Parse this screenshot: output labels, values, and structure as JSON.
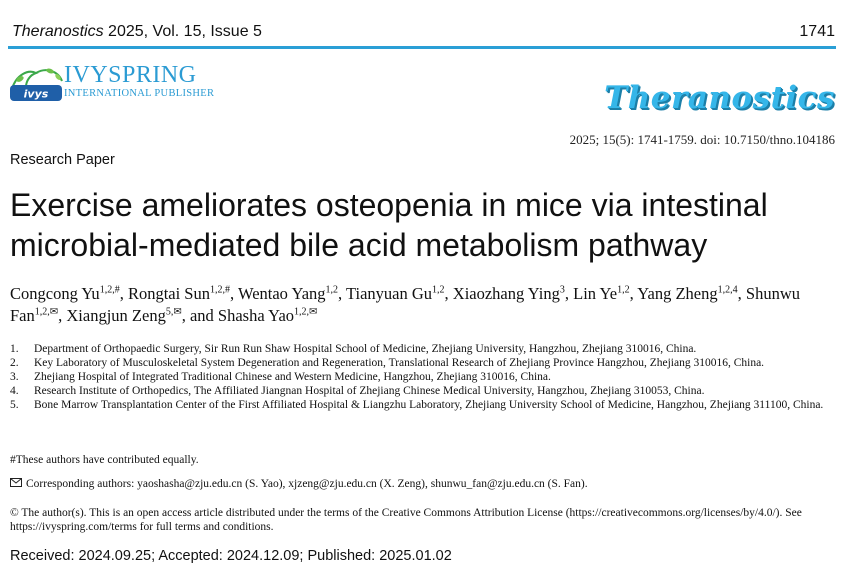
{
  "header": {
    "journal_name": "Theranostics",
    "journal_rest": "2025, Vol. 15, Issue 5",
    "page_number": "1741"
  },
  "publisher": {
    "logo_badge": "IVYSPRING",
    "name": "IVYSPRING",
    "subtitle": "INTERNATIONAL PUBLISHER"
  },
  "brand": {
    "journal_logo_text": "Theranostics"
  },
  "citation": "2025; 15(5): 1741-1759. doi: 10.7150/thno.104186",
  "paper_type": "Research Paper",
  "title": "Exercise ameliorates osteopenia in mice via intestinal microbial-mediated bile acid metabolism pathway",
  "authors": [
    {
      "name": "Congcong Yu",
      "sup": "1,2,#",
      "sep": ", "
    },
    {
      "name": "Rongtai Sun",
      "sup": "1,2,#",
      "sep": ", "
    },
    {
      "name": "Wentao Yang",
      "sup": "1,2",
      "sep": ", "
    },
    {
      "name": "Tianyuan Gu",
      "sup": "1,2",
      "sep": ", "
    },
    {
      "name": "Xiaozhang Ying",
      "sup": "3",
      "sep": ", "
    },
    {
      "name": "Lin Ye",
      "sup": "1,2",
      "sep": ", "
    },
    {
      "name": "Yang Zheng",
      "sup": "1,2,4",
      "sep": ", "
    },
    {
      "name": "Shunwu Fan",
      "sup": "1,2,✉",
      "sep": ", "
    },
    {
      "name": "Xiangjun Zeng",
      "sup": "5,✉",
      "sep": ", and "
    },
    {
      "name": "Shasha Yao",
      "sup": "1,2,✉",
      "sep": ""
    }
  ],
  "affiliations": [
    {
      "num": "1.",
      "text": "Department of Orthopaedic Surgery, Sir Run Run Shaw Hospital School of Medicine, Zhejiang University, Hangzhou, Zhejiang 310016, China."
    },
    {
      "num": "2.",
      "text": "Key Laboratory of Musculoskeletal System Degeneration and Regeneration, Translational Research of Zhejiang Province Hangzhou, Zhejiang 310016, China."
    },
    {
      "num": "3.",
      "text": "Zhejiang Hospital of Integrated Traditional Chinese and Western Medicine, Hangzhou, Zhejiang 310016, China."
    },
    {
      "num": "4.",
      "text": "Research Institute of Orthopedics, The Affiliated Jiangnan Hospital of Zhejiang Chinese Medical University, Hangzhou, Zhejiang 310053, China."
    },
    {
      "num": "5.",
      "text": "Bone Marrow Transplantation Center of the First Affiliated Hospital & Liangzhu Laboratory, Zhejiang University School of Medicine, Hangzhou, Zhejiang 311100, China."
    }
  ],
  "equal_contribution": "#These authors have contributed equally.",
  "corresponding": {
    "icon": "envelope-icon",
    "text": "Corresponding authors: yaoshasha@zju.edu.cn (S. Yao), xjzeng@zju.edu.cn (X. Zeng), shunwu_fan@zju.edu.cn (S. Fan)."
  },
  "license": "© The author(s). This is an open access article distributed under the terms of the Creative Commons Attribution License (https://creativecommons.org/licenses/by/4.0/). See https://ivyspring.com/terms for full terms and conditions.",
  "dates": "Received: 2024.09.25; Accepted: 2024.12.09; Published: 2025.01.02",
  "colors": {
    "accent": "#2a9fd6",
    "brand": "#35b6e9"
  }
}
